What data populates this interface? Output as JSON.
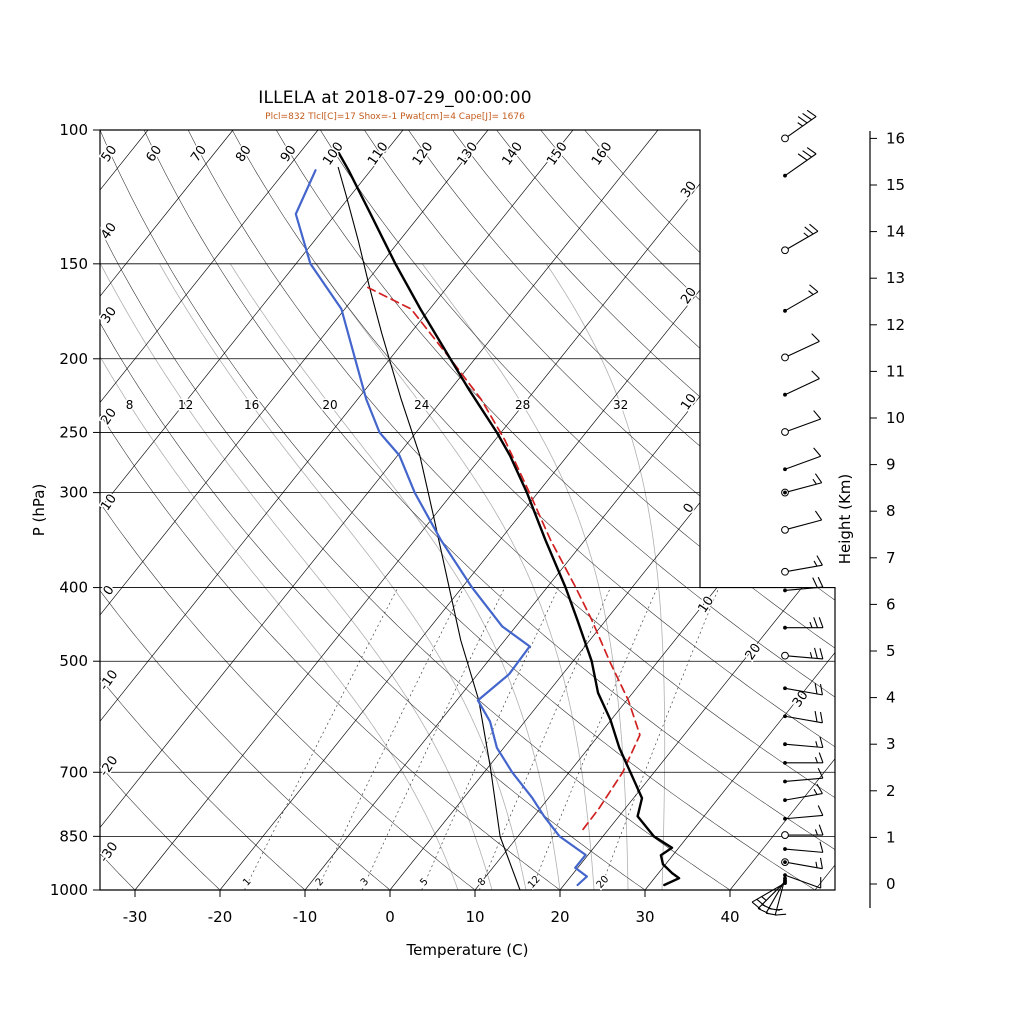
{
  "title": "ILLELA at 2018-07-29_00:00:00",
  "subtitle": "Plcl=832 Tlcl[C]=17 Shox=-1 Pwat[cm]=4 Cape[J]= 1676",
  "colors": {
    "temperature": "#000000",
    "dewpoint": "#4466cc",
    "parcel": "#d02020",
    "aux_line": "#000000",
    "subtitle": "#c35c1e",
    "moist_adiabat": "#b0b0b0",
    "dry_adiabat": "#2b2b2b",
    "isotherm": "#000000"
  },
  "axes": {
    "pressure_label": "P (hPa)",
    "pressure_ticks": [
      100,
      150,
      200,
      250,
      300,
      400,
      500,
      700,
      850,
      1000
    ],
    "temp_label": "Temperature (C)",
    "temp_ticks": [
      -30,
      -20,
      -10,
      0,
      10,
      20,
      30,
      40
    ],
    "height_label": "Height (Km)",
    "height_ticks": [
      0,
      1,
      2,
      3,
      4,
      5,
      6,
      7,
      8,
      9,
      10,
      11,
      12,
      13,
      14,
      15,
      16
    ]
  },
  "grid_labels": {
    "dry_adiabat_left": [
      "40",
      "30",
      "20",
      "10",
      "0",
      "-10",
      "-20",
      "-30"
    ],
    "dry_adiabat_top": [
      "50",
      "60",
      "70",
      "80",
      "90",
      "100",
      "110",
      "120",
      "130",
      "140",
      "150",
      "160"
    ],
    "isotherm_labels_upper": [
      {
        "label": "30",
        "T": -30
      },
      {
        "label": "20",
        "T": -20
      },
      {
        "label": "10",
        "T": -10
      },
      {
        "label": "0",
        "T": 0
      }
    ],
    "isotherm_labels_lower": [
      {
        "label": "10",
        "T": 10
      },
      {
        "label": "20",
        "T": 20
      },
      {
        "label": "30",
        "T": 30
      }
    ],
    "moist_adiabat": [
      "8",
      "12",
      "16",
      "20",
      "24",
      "28",
      "32"
    ],
    "mixing_ratio": [
      "1",
      "2",
      "3",
      "5",
      "8",
      "12",
      "20"
    ]
  },
  "chart_data": {
    "type": "skewt-log-p",
    "station": "ILLELA",
    "datetime": "2018-07-29_00:00:00",
    "indices": {
      "Plcl": 832,
      "Tlcl_C": 17,
      "Shox": -1,
      "Pwat_cm": 4,
      "Cape_J": 1676
    },
    "temperature_profile": {
      "pressure_hPa": [
        985,
        965,
        950,
        925,
        900,
        880,
        850,
        800,
        757,
        700,
        650,
        597,
        550,
        500,
        441,
        400,
        346,
        300,
        268,
        250,
        220,
        200,
        172,
        150,
        129,
        113,
        105
      ],
      "temp_C": [
        31.8,
        32.9,
        31.6,
        29.7,
        28.6,
        29.2,
        26.0,
        22.2,
        21.0,
        17.2,
        13.6,
        9.9,
        5.9,
        2.2,
        -3.4,
        -7.8,
        -14.7,
        -21.3,
        -26.8,
        -30.5,
        -37.7,
        -42.9,
        -51.1,
        -58.3,
        -65.9,
        -72.6,
        -76.5
      ]
    },
    "dewpoint_profile": {
      "pressure_hPa": [
        985,
        960,
        935,
        899,
        850,
        800,
        757,
        700,
        650,
        600,
        563,
        520,
        478,
        450,
        400,
        346,
        300,
        268,
        250,
        226,
        200,
        172,
        150,
        129,
        113
      ],
      "temp_C": [
        21.6,
        21.9,
        19.7,
        19.7,
        14.9,
        11.2,
        8.1,
        3.3,
        -0.8,
        -4.1,
        -7.5,
        -6.3,
        -6.5,
        -11.6,
        -18.8,
        -27.0,
        -34.5,
        -39.8,
        -44.3,
        -49.0,
        -54.1,
        -60.4,
        -68.3,
        -74.7,
        -76.5
      ]
    },
    "parcel_trace": {
      "pressure_hPa": [
        832,
        780,
        700,
        625,
        563,
        500,
        441,
        400,
        346,
        300,
        256,
        226,
        200,
        172,
        161
      ],
      "temp_C": [
        17.0,
        16.9,
        16.3,
        14.8,
        10.2,
        4.3,
        -1.7,
        -6.6,
        -14.1,
        -21.0,
        -28.8,
        -35.5,
        -42.9,
        -52.2,
        -59.4
      ]
    },
    "aux_profile": {
      "pressure_hPa": [
        1000,
        850,
        694,
        563,
        469,
        400,
        326,
        268,
        226,
        185,
        162,
        140,
        122,
        112
      ],
      "temp_C": [
        15.3,
        7.9,
        0.5,
        -7.4,
        -15.2,
        -21.5,
        -29.6,
        -37.4,
        -44.9,
        -53.4,
        -58.9,
        -64.8,
        -70.5,
        -74.1
      ]
    },
    "wind_barbs": {
      "columns": [
        "height_km",
        "speed_kt",
        "dir_deg",
        "marker"
      ],
      "rows": [
        [
          16.0,
          35,
          55,
          "circle"
        ],
        [
          15.2,
          30,
          55,
          "dot"
        ],
        [
          13.6,
          25,
          60,
          "circle"
        ],
        [
          12.3,
          15,
          60,
          "dot"
        ],
        [
          11.3,
          10,
          65,
          "circle"
        ],
        [
          10.5,
          10,
          65,
          "dot"
        ],
        [
          9.7,
          10,
          70,
          "circle"
        ],
        [
          8.9,
          10,
          70,
          "dot"
        ],
        [
          8.4,
          15,
          75,
          "circle-dot"
        ],
        [
          7.6,
          10,
          75,
          "circle"
        ],
        [
          6.7,
          15,
          80,
          "circle"
        ],
        [
          6.3,
          20,
          85,
          "dot"
        ],
        [
          5.5,
          25,
          90,
          "dot"
        ],
        [
          4.9,
          25,
          95,
          "circle"
        ],
        [
          4.2,
          20,
          100,
          "dot"
        ],
        [
          3.6,
          20,
          100,
          "dot"
        ],
        [
          3.0,
          15,
          95,
          "dot"
        ],
        [
          2.6,
          15,
          90,
          "dot"
        ],
        [
          2.2,
          10,
          85,
          "dot"
        ],
        [
          1.8,
          15,
          80,
          "dot"
        ],
        [
          1.4,
          10,
          85,
          "dot"
        ],
        [
          1.05,
          15,
          90,
          "circle"
        ],
        [
          0.75,
          10,
          95,
          "dot"
        ],
        [
          0.47,
          15,
          100,
          "circle-dot"
        ],
        [
          0.19,
          10,
          110,
          "dot"
        ],
        [
          0.12,
          15,
          195,
          "dot"
        ],
        [
          0.08,
          20,
          210,
          "dot"
        ],
        [
          0.05,
          20,
          225,
          "dot"
        ],
        [
          0.02,
          25,
          240,
          "dot"
        ]
      ]
    }
  }
}
